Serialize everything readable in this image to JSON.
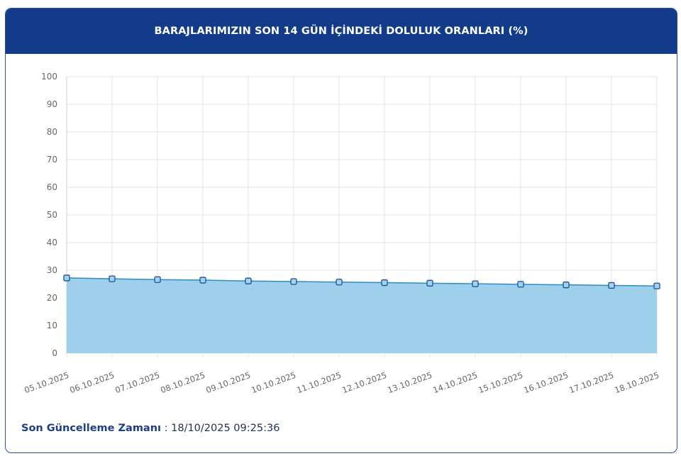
{
  "header": {
    "title": "BARAJLARIMIZIN SON 14 GÜN İÇİNDEKİ DOLULUK ORANLARI (%)"
  },
  "footer": {
    "label": "Son Güncelleme Zamanı",
    "separator": ":",
    "value": "18/10/2025 09:25:36"
  },
  "colors": {
    "header_bg": "#123c8a",
    "area_fill": "#9ecfeb",
    "line": "#2f8bc4",
    "marker": "#1f4f8f"
  },
  "chart_data": {
    "type": "area",
    "title": "BARAJLARIMIZIN SON 14 GÜN İÇİNDEKİ DOLULUK ORANLARI (%)",
    "xlabel": "",
    "ylabel": "",
    "ylim": [
      0,
      100
    ],
    "yticks": [
      0,
      10,
      20,
      30,
      40,
      50,
      60,
      70,
      80,
      90,
      100
    ],
    "grid": true,
    "legend": "none",
    "categories": [
      "05.10.2025",
      "06.10.2025",
      "07.10.2025",
      "08.10.2025",
      "09.10.2025",
      "10.10.2025",
      "11.10.2025",
      "12.10.2025",
      "13.10.2025",
      "14.10.2025",
      "15.10.2025",
      "16.10.2025",
      "17.10.2025",
      "18.10.2025"
    ],
    "values": [
      27.2,
      26.9,
      26.6,
      26.4,
      26.1,
      25.9,
      25.7,
      25.5,
      25.3,
      25.1,
      24.9,
      24.7,
      24.5,
      24.3
    ]
  }
}
